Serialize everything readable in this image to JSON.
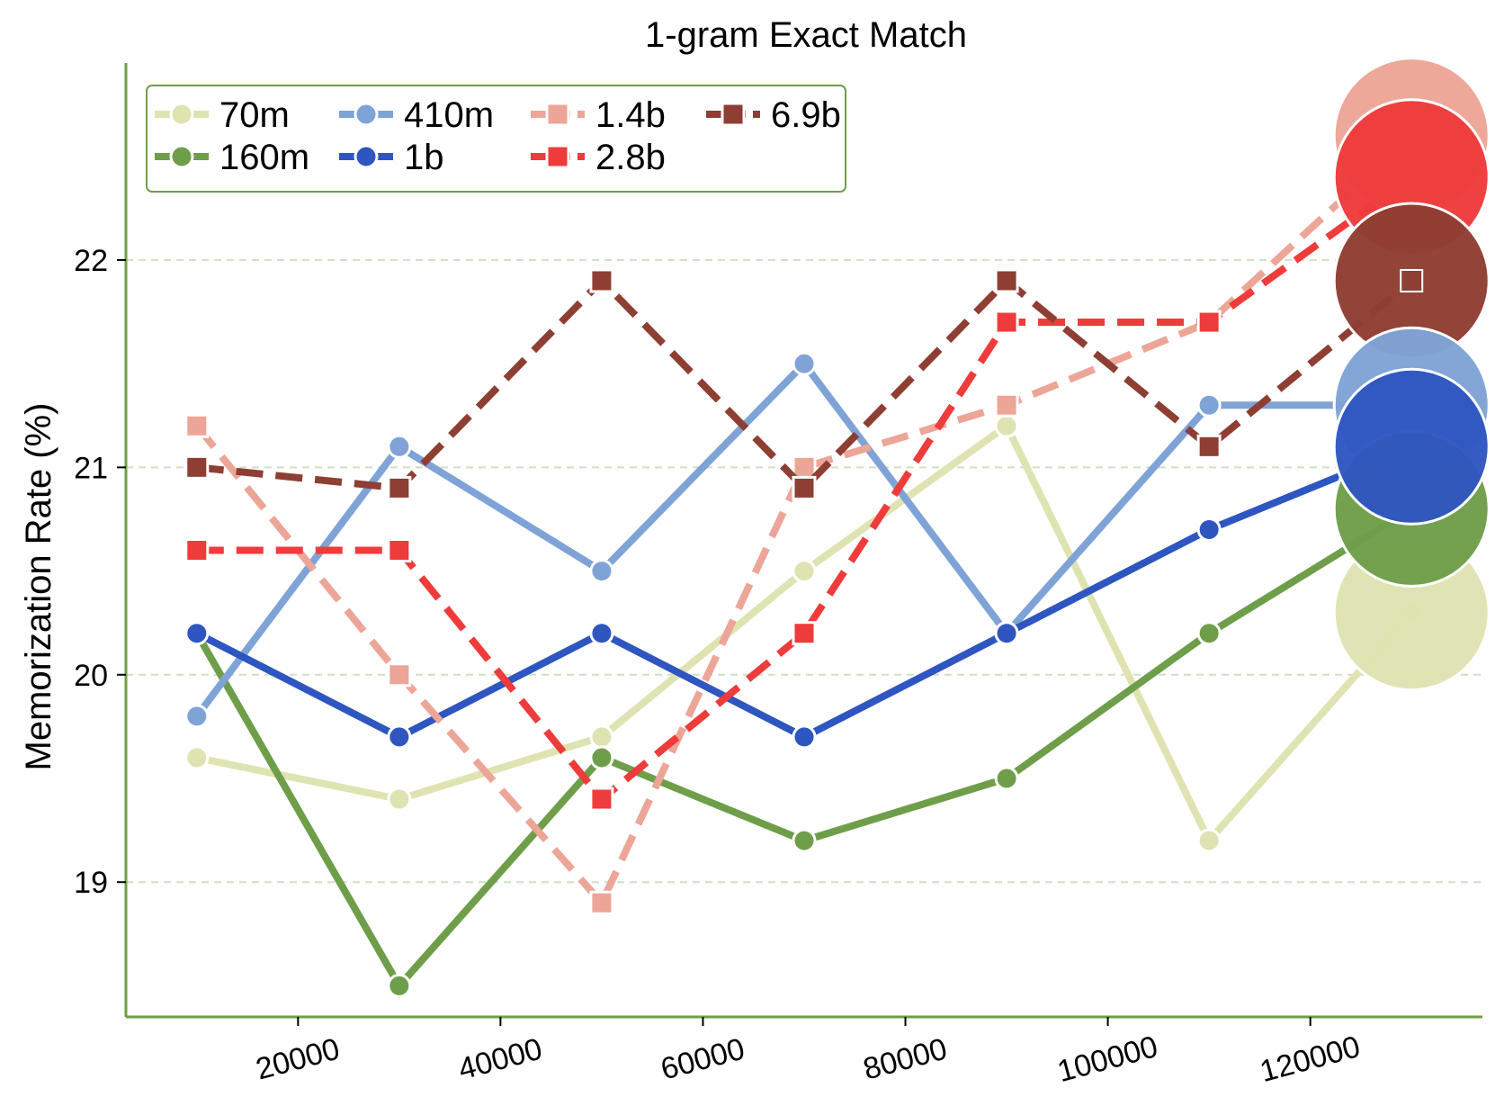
{
  "chart_data": {
    "type": "line",
    "title": "1-gram Exact Match",
    "xlabel": "",
    "ylabel": "Memorization Rate (%)",
    "xlim": [
      3000,
      137000
    ],
    "ylim": [
      18.35,
      22.95
    ],
    "x_ticks": [
      20000,
      40000,
      60000,
      80000,
      100000,
      120000
    ],
    "y_ticks": [
      19,
      20,
      21,
      22
    ],
    "grid": "horizontal-dashed",
    "legend_position": "top-left",
    "x": [
      10000,
      30000,
      50000,
      70000,
      90000,
      110000,
      130000
    ],
    "series": [
      {
        "name": "70m",
        "color": "#dfe3b2",
        "dash": "solid",
        "marker": "circle",
        "values": [
          19.6,
          19.4,
          19.7,
          20.5,
          21.2,
          19.2,
          20.3
        ],
        "end_bubble": 20.3
      },
      {
        "name": "160m",
        "color": "#6f9e4a",
        "dash": "solid",
        "marker": "circle",
        "values": [
          20.2,
          18.5,
          19.6,
          19.2,
          19.5,
          20.2,
          20.8
        ],
        "end_bubble": 20.8
      },
      {
        "name": "410m",
        "color": "#7fa3d6",
        "dash": "solid",
        "marker": "circle",
        "values": [
          19.8,
          21.1,
          20.5,
          21.5,
          20.2,
          21.3,
          21.3
        ],
        "end_bubble": 21.3
      },
      {
        "name": "1b",
        "color": "#2f56c0",
        "dash": "solid",
        "marker": "circle",
        "values": [
          20.2,
          19.7,
          20.2,
          19.7,
          20.2,
          20.7,
          21.1
        ],
        "end_bubble": 21.1
      },
      {
        "name": "1.4b",
        "color": "#eca597",
        "dash": "dashed",
        "marker": "square",
        "values": [
          21.2,
          20.0,
          18.9,
          21.0,
          21.3,
          21.7,
          22.6
        ],
        "end_bubble": 22.6
      },
      {
        "name": "2.8b",
        "color": "#ee3b3b",
        "dash": "dashed",
        "marker": "square",
        "values": [
          20.6,
          20.6,
          19.4,
          20.2,
          21.7,
          21.7,
          22.4
        ],
        "end_bubble": 22.4
      },
      {
        "name": "6.9b",
        "color": "#8e3e33",
        "dash": "dashed",
        "marker": "square",
        "values": [
          21.0,
          20.9,
          21.9,
          20.9,
          21.9,
          21.1,
          21.9
        ],
        "end_bubble": 21.9
      }
    ],
    "bubble_order": [
      "1.4b",
      "2.8b",
      "6.9b",
      "410m",
      "70m",
      "160m",
      "1b"
    ]
  }
}
